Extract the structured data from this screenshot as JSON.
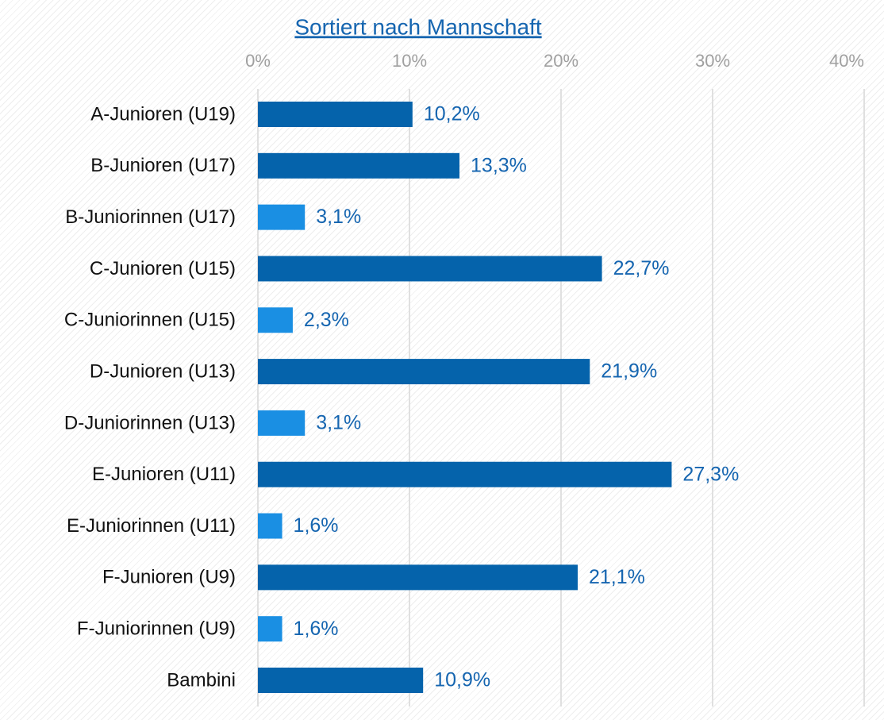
{
  "chart_data": {
    "type": "bar",
    "orientation": "horizontal",
    "title": "Sortiert nach Mannschaft",
    "categories": [
      "A-Junioren (U19)",
      "B-Junioren (U17)",
      "B-Juniorinnen (U17)",
      "C-Junioren (U15)",
      "C-Juniorinnen (U15)",
      "D-Junioren (U13)",
      "D-Juniorinnen (U13)",
      "E-Junioren (U11)",
      "E-Juniorinnen (U11)",
      "F-Junioren (U9)",
      "F-Juniorinnen (U9)",
      "Bambini"
    ],
    "values": [
      10.2,
      13.3,
      3.1,
      22.7,
      2.3,
      21.9,
      3.1,
      27.3,
      1.6,
      21.1,
      1.6,
      10.9
    ],
    "value_labels": [
      "10,2%",
      "13,3%",
      "3,1%",
      "22,7%",
      "2,3%",
      "21,9%",
      "3,1%",
      "27,3%",
      "1,6%",
      "21,1%",
      "1,6%",
      "10,9%"
    ],
    "colors": [
      "#0563ab",
      "#0563ab",
      "#1a8fe3",
      "#0563ab",
      "#1a8fe3",
      "#0563ab",
      "#1a8fe3",
      "#0563ab",
      "#1a8fe3",
      "#0563ab",
      "#1a8fe3",
      "#0563ab"
    ],
    "xlim": [
      0,
      40
    ],
    "xticks": [
      {
        "value": 0,
        "label": "0%"
      },
      {
        "value": 10,
        "label": "10%"
      },
      {
        "value": 20,
        "label": "20%"
      },
      {
        "value": 30,
        "label": "30%"
      },
      {
        "value": 40,
        "label": "40%"
      }
    ],
    "grid": true
  }
}
